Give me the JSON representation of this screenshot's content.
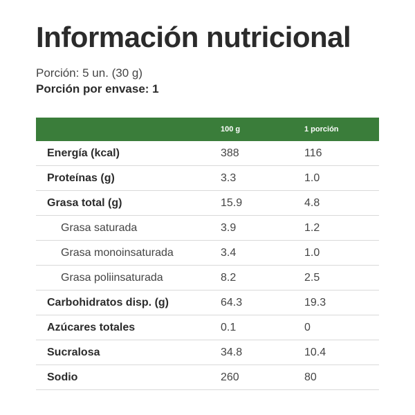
{
  "title": "Información nutricional",
  "serving": {
    "portion_label": "Porción:",
    "portion_value": "5 un. (30 g)",
    "per_package_label": "Porción por envase:",
    "per_package_value": "1"
  },
  "colors": {
    "header_bg": "#3a7d3a",
    "text": "#2b2b2b",
    "row_border": "#d9d9d9"
  },
  "table": {
    "headers": [
      "",
      "100 g",
      "1 porción"
    ],
    "rows": [
      {
        "label": "Energía (kcal)",
        "per100": "388",
        "portion": "116",
        "level": "main"
      },
      {
        "label": "Proteínas (g)",
        "per100": "3.3",
        "portion": "1.0",
        "level": "main"
      },
      {
        "label": "Grasa total (g)",
        "per100": "15.9",
        "portion": "4.8",
        "level": "main"
      },
      {
        "label": "Grasa saturada",
        "per100": "3.9",
        "portion": "1.2",
        "level": "sub"
      },
      {
        "label": "Grasa monoinsaturada",
        "per100": "3.4",
        "portion": "1.0",
        "level": "sub"
      },
      {
        "label": "Grasa poliinsaturada",
        "per100": "8.2",
        "portion": "2.5",
        "level": "sub"
      },
      {
        "label": "Carbohidratos disp. (g)",
        "per100": "64.3",
        "portion": "19.3",
        "level": "main"
      },
      {
        "label": "Azúcares totales",
        "per100": "0.1",
        "portion": "0",
        "level": "main"
      },
      {
        "label": "Sucralosa",
        "per100": "34.8",
        "portion": "10.4",
        "level": "main"
      },
      {
        "label": "Sodio",
        "per100": "260",
        "portion": "80",
        "level": "main"
      }
    ]
  }
}
